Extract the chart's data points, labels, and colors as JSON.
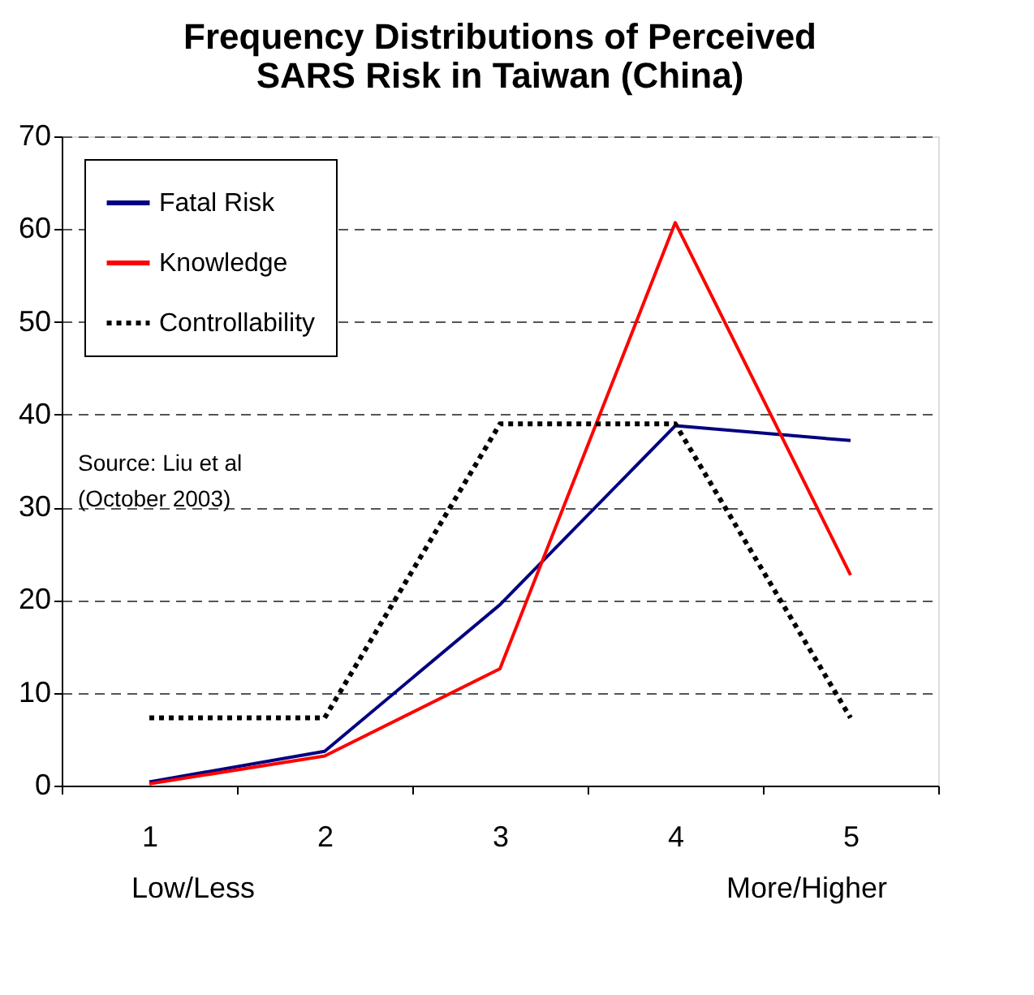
{
  "chart_data": {
    "type": "line",
    "title": "Frequency Distributions of Perceived SARS Risk in Taiwan (China)",
    "categories": [
      "1",
      "2",
      "3",
      "4",
      "5"
    ],
    "series": [
      {
        "name": "Fatal Risk",
        "color": "#000080",
        "line_style": "solid",
        "values": [
          0.4,
          3.7,
          19.5,
          38.8,
          37.2
        ]
      },
      {
        "name": "Knowledge",
        "color": "#ff0000",
        "line_style": "solid",
        "values": [
          0.2,
          3.2,
          12.6,
          60.7,
          22.7
        ]
      },
      {
        "name": "Controllability",
        "color": "#000000",
        "line_style": "dotted",
        "values": [
          7.3,
          7.3,
          39,
          39,
          7.3
        ]
      }
    ],
    "ylim": [
      0,
      70
    ],
    "yticks": [
      0,
      10,
      20,
      30,
      40,
      50,
      60,
      70
    ],
    "grid": "y",
    "legend": "top left",
    "marker": "none",
    "annotations": [
      "Source: Liu et al\n(October 2003)",
      "Low/Less",
      "More/Higher"
    ]
  }
}
